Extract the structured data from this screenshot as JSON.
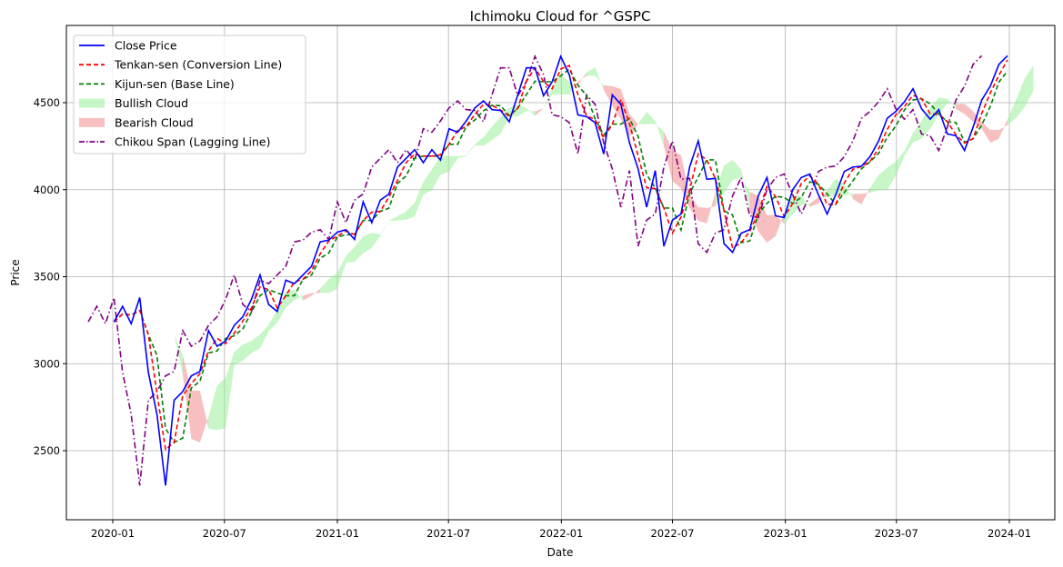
{
  "chart_data": {
    "type": "line",
    "title": "Ichimoku Cloud for ^GSPC",
    "xlabel": "Date",
    "ylabel": "Price",
    "ylim": [
      2103,
      4944
    ],
    "xlim": [
      "2019-11-23",
      "2024-02-10"
    ],
    "grid": true,
    "legend_position": "top-left",
    "x_ticks": [
      "2020-01",
      "2020-07",
      "2021-01",
      "2021-07",
      "2022-01",
      "2022-07",
      "2023-01",
      "2023-07",
      "2024-01"
    ],
    "y_ticks": [
      2500,
      3000,
      3500,
      4000,
      4500
    ],
    "legend": [
      "Close Price",
      "Tenkan-sen (Conversion Line)",
      "Kijun-sen (Base Line)",
      "Bullish Cloud",
      "Bearish Cloud",
      "Chikou Span (Lagging Line)"
    ],
    "colors": {
      "close": "#0000ff",
      "tenkan": "#ff0000",
      "kijun": "#008000",
      "bullish": "#90ee90",
      "bearish": "#f08080",
      "chikou": "#800080"
    },
    "start_date": "2020-01-03",
    "step_days": 14,
    "close": [
      3240,
      3330,
      3230,
      3380,
      2950,
      2710,
      2300,
      2790,
      2840,
      2930,
      2955,
      3190,
      3100,
      3130,
      3220,
      3270,
      3370,
      3510,
      3340,
      3300,
      3480,
      3460,
      3510,
      3560,
      3700,
      3710,
      3756,
      3770,
      3714,
      3930,
      3810,
      3940,
      3975,
      4130,
      4180,
      4230,
      4155,
      4230,
      4170,
      4350,
      4330,
      4395,
      4470,
      4510,
      4460,
      4455,
      4390,
      4545,
      4700,
      4700,
      4540,
      4620,
      4766,
      4660,
      4430,
      4420,
      4385,
      4205,
      4545,
      4490,
      4270,
      4120,
      3900,
      4110,
      3675,
      3825,
      3860,
      4130,
      4280,
      4060,
      4065,
      3690,
      3640,
      3750,
      3770,
      3965,
      4070,
      3850,
      3840,
      4000,
      4070,
      4090,
      3970,
      3860,
      3970,
      4105,
      4130,
      4135,
      4190,
      4280,
      4410,
      4450,
      4505,
      4580,
      4465,
      4405,
      4460,
      4320,
      4310,
      4225,
      4360,
      4515,
      4595,
      4720,
      4770
    ]
  }
}
